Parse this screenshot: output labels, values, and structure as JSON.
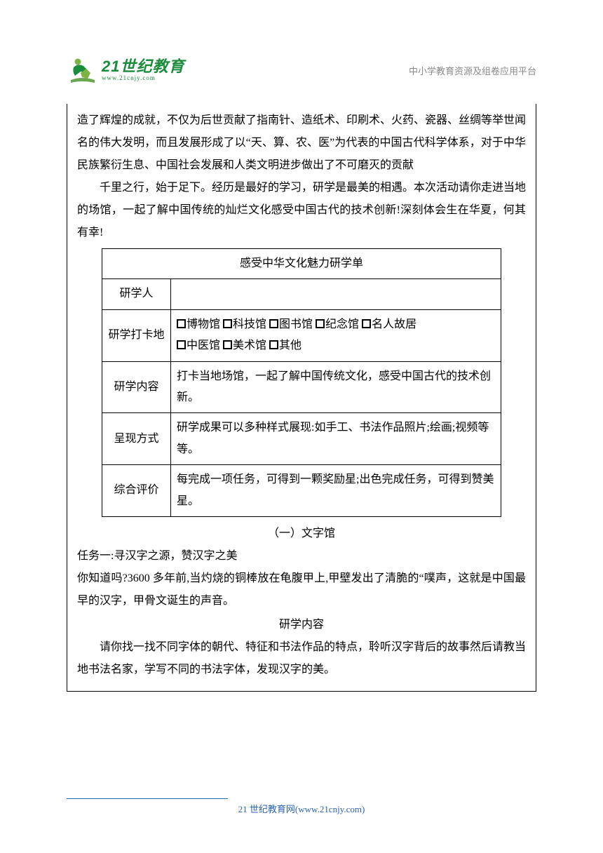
{
  "header": {
    "logo_main": "21世纪教育",
    "logo_sub": "www.21cnjy.com",
    "right_text": "中小学教育资源及组卷应用平台"
  },
  "content": {
    "para1": "造了辉煌的成就，不仅为后世贡献了指南针、造纸术、印刷术、火药、瓷器、丝绸等举世闻名的伟大发明，而且发展形成了以“天、算、农、医”为代表的中国古代科学体系，对于中华民族繁衍生息、中国社会发展和人类文明进步做出了不可磨灭的贡献",
    "para2": "千里之行，始于足下。经历是最好的学习，研学是最美的相遇。本次活动请你走进当地的场馆，一起了解中国传统的灿烂文化感受中国古代的技术创新!深刻体会生在华夏，何其有幸!",
    "table": {
      "title": "感受中华文化魅力研学单",
      "rows": [
        {
          "label": "研学人",
          "value": ""
        },
        {
          "label": "研学打卡地",
          "options": [
            "博物馆",
            "科技馆",
            "图书馆",
            "纪念馆",
            "名人故居",
            "中医馆",
            "美术馆",
            "其他"
          ]
        },
        {
          "label": "研学内容",
          "value": "打卡当地场馆，一起了解中国传统文化，感受中国古代的技术创新。"
        },
        {
          "label": "呈现方式",
          "value": "研学成果可以多种样式展现:如手工、书法作品照片;绘画;视频等等。"
        },
        {
          "label": "综合评价",
          "value": "每完成一项任务，可得到一颗奖励星;出色完成任务，可得到赞美星。"
        }
      ]
    },
    "section_heading": "（一）文字馆",
    "task_heading": "任务一:寻汉字之源，赞汉字之美",
    "task_para": "你知道吗?3600 多年前,当灼烧的铜棒放在龟腹甲上,甲壁发出了清脆的“噗声，这就是中国最早的汉字，甲骨文诞生的声音。",
    "sub_heading": "研学内容",
    "sub_para": "请你找一找不同字体的朝代、特征和书法作品的特点，聆听汉字背后的故事然后请教当地书法名家，学写不同的书法字体，发现汉字的美。"
  },
  "footer": {
    "text": "21 世纪教育网(www.21cnjy.com)"
  },
  "colors": {
    "logo_green": "#1a8c3c",
    "footer_blue": "#2962b4",
    "header_gray": "#8a8a8a",
    "text": "#000000",
    "background": "#ffffff"
  }
}
